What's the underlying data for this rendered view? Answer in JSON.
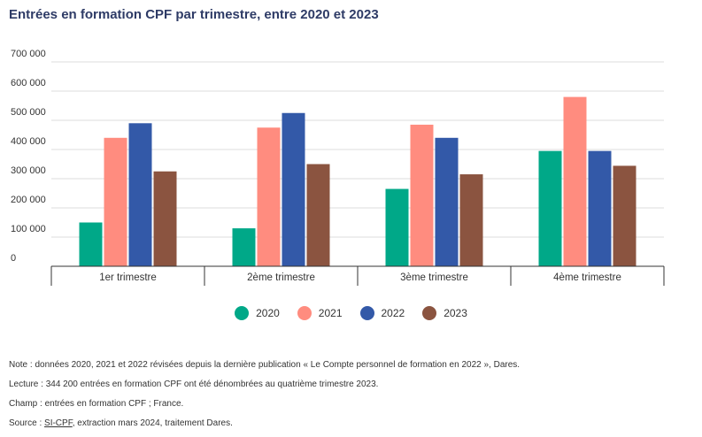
{
  "title": "Entrées en formation CPF par trimestre, entre 2020 et 2023",
  "chart_data": {
    "type": "bar",
    "title": "Entrées en formation CPF par trimestre, entre 2020 et 2023",
    "categories": [
      "1er trimestre",
      "2ème trimestre",
      "3ème trimestre",
      "4ème trimestre"
    ],
    "series": [
      {
        "name": "2020",
        "color": "#00a888",
        "values": [
          150000,
          130000,
          265000,
          395000
        ]
      },
      {
        "name": "2021",
        "color": "#ff8c7f",
        "values": [
          440000,
          475000,
          485000,
          580000
        ]
      },
      {
        "name": "2022",
        "color": "#3359a8",
        "values": [
          490000,
          525000,
          440000,
          395000
        ]
      },
      {
        "name": "2023",
        "color": "#8b5440",
        "values": [
          325000,
          350000,
          315000,
          344200
        ]
      }
    ],
    "ylim": [
      0,
      700000
    ],
    "yticks": [
      0,
      100000,
      200000,
      300000,
      400000,
      500000,
      600000,
      700000
    ],
    "ytick_labels": [
      "0",
      "100 000",
      "200 000",
      "300 000",
      "400 000",
      "500 000",
      "600 000",
      "700 000"
    ],
    "grid": true,
    "legend_position": "bottom",
    "xlabel": "",
    "ylabel": ""
  },
  "notes": {
    "note": "Note : données 2020, 2021 et 2022 révisées depuis la dernière publication « Le Compte personnel de formation en 2022 », Dares.",
    "lecture": "Lecture : 344 200 entrées en formation CPF ont été dénombrées au quatrième trimestre 2023.",
    "champ": "Champ : entrées en formation CPF ; France.",
    "source_prefix": "Source : ",
    "source_link": "SI-CPF",
    "source_suffix": ", extraction mars 2024, traitement Dares."
  }
}
